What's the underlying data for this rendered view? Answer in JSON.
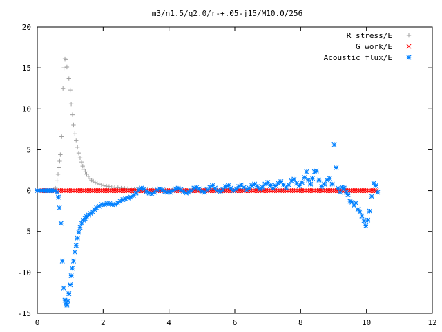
{
  "chart_data": {
    "type": "scatter",
    "title": "m3/n1.5/q2.0/r-+.05-j15/M10.0/256",
    "xlabel": "",
    "ylabel": "",
    "xlim": [
      0,
      12
    ],
    "ylim": [
      -15,
      20
    ],
    "x_ticks": [
      0,
      2,
      4,
      6,
      8,
      10,
      12
    ],
    "y_ticks": [
      -15,
      -10,
      -5,
      0,
      5,
      10,
      15,
      20
    ],
    "grid": false,
    "legend_position": "top-right",
    "series": [
      {
        "name": "R stress/E",
        "marker": "plus",
        "color": "#a0a0a0",
        "points": [
          [
            0.0,
            0
          ],
          [
            0.1,
            0
          ],
          [
            0.2,
            0
          ],
          [
            0.3,
            0
          ],
          [
            0.4,
            0
          ],
          [
            0.5,
            0.05
          ],
          [
            0.55,
            0.3
          ],
          [
            0.6,
            1.2
          ],
          [
            0.63,
            2.0
          ],
          [
            0.66,
            2.8
          ],
          [
            0.68,
            3.6
          ],
          [
            0.7,
            4.4
          ],
          [
            0.74,
            6.6
          ],
          [
            0.78,
            12.5
          ],
          [
            0.81,
            15.0
          ],
          [
            0.84,
            16.1
          ],
          [
            0.87,
            16.0
          ],
          [
            0.9,
            15.1
          ],
          [
            0.96,
            13.7
          ],
          [
            1.0,
            12.3
          ],
          [
            1.03,
            10.6
          ],
          [
            1.07,
            9.3
          ],
          [
            1.1,
            8.0
          ],
          [
            1.14,
            7.0
          ],
          [
            1.18,
            6.1
          ],
          [
            1.22,
            5.3
          ],
          [
            1.26,
            4.6
          ],
          [
            1.3,
            4.0
          ],
          [
            1.34,
            3.5
          ],
          [
            1.38,
            3.0
          ],
          [
            1.42,
            2.6
          ],
          [
            1.46,
            2.3
          ],
          [
            1.5,
            2.0
          ],
          [
            1.55,
            1.75
          ],
          [
            1.6,
            1.5
          ],
          [
            1.65,
            1.3
          ],
          [
            1.7,
            1.15
          ],
          [
            1.76,
            1.0
          ],
          [
            1.82,
            0.9
          ],
          [
            1.88,
            0.8
          ],
          [
            1.95,
            0.7
          ],
          [
            2.02,
            0.62
          ],
          [
            2.1,
            0.55
          ],
          [
            2.18,
            0.5
          ],
          [
            2.26,
            0.45
          ],
          [
            2.35,
            0.4
          ],
          [
            2.45,
            0.35
          ],
          [
            2.55,
            0.3
          ],
          [
            2.65,
            0.27
          ],
          [
            2.75,
            0.24
          ],
          [
            2.85,
            0.21
          ],
          [
            2.95,
            0.18
          ],
          [
            3.05,
            0.16
          ],
          [
            3.2,
            0.14
          ],
          [
            3.35,
            0.12
          ],
          [
            3.5,
            0.1
          ],
          [
            3.7,
            0.08
          ],
          [
            3.9,
            0.06
          ],
          [
            4.1,
            0.05
          ],
          [
            4.3,
            0.04
          ],
          [
            4.6,
            0.03
          ],
          [
            4.9,
            0.02
          ],
          [
            5.3,
            0.01
          ],
          [
            5.7,
            0.0
          ],
          [
            6.2,
            0.0
          ],
          [
            6.8,
            0.0
          ],
          [
            7.4,
            0.0
          ],
          [
            8.0,
            0.0
          ],
          [
            8.6,
            0.0
          ],
          [
            9.2,
            0.0
          ],
          [
            9.8,
            0.0
          ],
          [
            10.3,
            0.0
          ]
        ]
      },
      {
        "name": "G work/E",
        "marker": "cross",
        "color": "#ff0000",
        "points": []
      },
      {
        "name": "Acoustic flux/E",
        "marker": "star",
        "color": "#0080ff",
        "points": [
          [
            0.0,
            0
          ],
          [
            0.06,
            0
          ],
          [
            0.12,
            0
          ],
          [
            0.18,
            0
          ],
          [
            0.24,
            0
          ],
          [
            0.3,
            0
          ],
          [
            0.36,
            0
          ],
          [
            0.42,
            0
          ],
          [
            0.48,
            0
          ],
          [
            0.54,
            0
          ],
          [
            0.6,
            -0.2
          ],
          [
            0.64,
            -0.8
          ],
          [
            0.67,
            -2.1
          ],
          [
            0.72,
            -4.0
          ],
          [
            0.76,
            -8.6
          ],
          [
            0.8,
            -11.9
          ],
          [
            0.84,
            -13.4
          ],
          [
            0.87,
            -13.8
          ],
          [
            0.9,
            -14.0
          ],
          [
            0.93,
            -13.5
          ],
          [
            0.96,
            -12.6
          ],
          [
            1.0,
            -11.5
          ],
          [
            1.03,
            -10.4
          ],
          [
            1.06,
            -9.5
          ],
          [
            1.1,
            -8.6
          ],
          [
            1.14,
            -7.5
          ],
          [
            1.18,
            -6.7
          ],
          [
            1.22,
            -5.8
          ],
          [
            1.26,
            -5.1
          ],
          [
            1.3,
            -4.5
          ],
          [
            1.35,
            -4.0
          ],
          [
            1.4,
            -3.6
          ],
          [
            1.45,
            -3.4
          ],
          [
            1.5,
            -3.2
          ],
          [
            1.56,
            -3.0
          ],
          [
            1.62,
            -2.8
          ],
          [
            1.68,
            -2.6
          ],
          [
            1.74,
            -2.3
          ],
          [
            1.8,
            -2.1
          ],
          [
            1.88,
            -1.9
          ],
          [
            1.96,
            -1.7
          ],
          [
            2.04,
            -1.7
          ],
          [
            2.12,
            -1.6
          ],
          [
            2.2,
            -1.6
          ],
          [
            2.28,
            -1.7
          ],
          [
            2.36,
            -1.7
          ],
          [
            2.44,
            -1.5
          ],
          [
            2.52,
            -1.3
          ],
          [
            2.6,
            -1.1
          ],
          [
            2.68,
            -1.0
          ],
          [
            2.76,
            -0.9
          ],
          [
            2.84,
            -0.8
          ],
          [
            2.92,
            -0.6
          ],
          [
            3.0,
            -0.3
          ],
          [
            3.08,
            0.1
          ],
          [
            3.16,
            0.3
          ],
          [
            3.24,
            0.2
          ],
          [
            3.32,
            -0.1
          ],
          [
            3.4,
            -0.3
          ],
          [
            3.48,
            -0.4
          ],
          [
            3.56,
            -0.2
          ],
          [
            3.64,
            0.1
          ],
          [
            3.72,
            0.2
          ],
          [
            3.8,
            0.1
          ],
          [
            3.88,
            -0.1
          ],
          [
            3.96,
            -0.2
          ],
          [
            4.04,
            -0.2
          ],
          [
            4.12,
            0.0
          ],
          [
            4.2,
            0.2
          ],
          [
            4.28,
            0.3
          ],
          [
            4.36,
            0.1
          ],
          [
            4.44,
            -0.1
          ],
          [
            4.52,
            -0.3
          ],
          [
            4.6,
            -0.2
          ],
          [
            4.68,
            0.0
          ],
          [
            4.76,
            0.3
          ],
          [
            4.84,
            0.4
          ],
          [
            4.92,
            0.2
          ],
          [
            5.0,
            -0.1
          ],
          [
            5.08,
            -0.2
          ],
          [
            5.16,
            0.1
          ],
          [
            5.24,
            0.4
          ],
          [
            5.32,
            0.6
          ],
          [
            5.4,
            0.3
          ],
          [
            5.48,
            0.0
          ],
          [
            5.56,
            -0.1
          ],
          [
            5.64,
            0.1
          ],
          [
            5.72,
            0.5
          ],
          [
            5.8,
            0.6
          ],
          [
            5.88,
            0.3
          ],
          [
            5.96,
            0.0
          ],
          [
            6.04,
            0.2
          ],
          [
            6.12,
            0.5
          ],
          [
            6.2,
            0.7
          ],
          [
            6.28,
            0.4
          ],
          [
            6.36,
            0.1
          ],
          [
            6.44,
            0.3
          ],
          [
            6.52,
            0.6
          ],
          [
            6.6,
            0.8
          ],
          [
            6.68,
            0.5
          ],
          [
            6.76,
            0.2
          ],
          [
            6.84,
            0.4
          ],
          [
            6.92,
            0.8
          ],
          [
            7.0,
            1.0
          ],
          [
            7.08,
            0.6
          ],
          [
            7.16,
            0.3
          ],
          [
            7.24,
            0.6
          ],
          [
            7.32,
            0.9
          ],
          [
            7.4,
            1.1
          ],
          [
            7.48,
            0.7
          ],
          [
            7.56,
            0.4
          ],
          [
            7.64,
            0.7
          ],
          [
            7.72,
            1.2
          ],
          [
            7.8,
            1.4
          ],
          [
            7.88,
            0.9
          ],
          [
            7.96,
            0.6
          ],
          [
            8.04,
            1.0
          ],
          [
            8.12,
            1.6
          ],
          [
            8.18,
            2.3
          ],
          [
            8.24,
            1.3
          ],
          [
            8.3,
            0.8
          ],
          [
            8.36,
            1.5
          ],
          [
            8.42,
            2.3
          ],
          [
            8.48,
            2.4
          ],
          [
            8.56,
            1.3
          ],
          [
            8.64,
            0.5
          ],
          [
            8.72,
            0.8
          ],
          [
            8.8,
            1.3
          ],
          [
            8.88,
            1.5
          ],
          [
            8.96,
            0.8
          ],
          [
            9.02,
            5.6
          ],
          [
            9.08,
            2.8
          ],
          [
            9.14,
            0.3
          ],
          [
            9.2,
            -0.2
          ],
          [
            9.26,
            0.4
          ],
          [
            9.32,
            0.3
          ],
          [
            9.38,
            -0.2
          ],
          [
            9.44,
            -0.5
          ],
          [
            9.5,
            -1.3
          ],
          [
            9.56,
            -1.4
          ],
          [
            9.62,
            -1.8
          ],
          [
            9.68,
            -1.5
          ],
          [
            9.74,
            -2.3
          ],
          [
            9.8,
            -2.6
          ],
          [
            9.86,
            -3.1
          ],
          [
            9.92,
            -3.7
          ],
          [
            9.98,
            -4.3
          ],
          [
            10.04,
            -3.6
          ],
          [
            10.1,
            -2.5
          ],
          [
            10.16,
            -0.7
          ],
          [
            10.22,
            0.9
          ],
          [
            10.28,
            0.6
          ],
          [
            10.34,
            -0.2
          ]
        ]
      }
    ]
  }
}
